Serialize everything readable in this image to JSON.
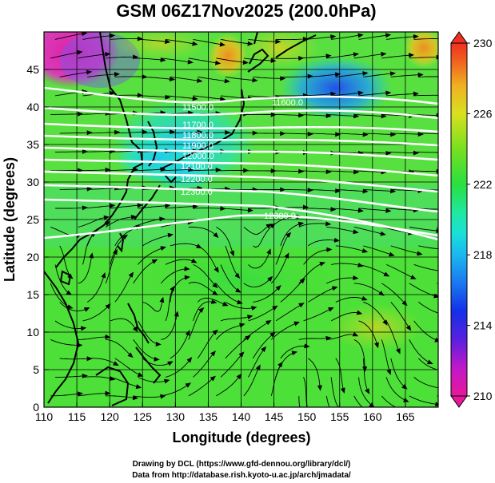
{
  "title": "GSM 06Z17Nov2025 (200.0hPa)",
  "xlabel": "Longitude (degrees)",
  "ylabel": "Latitude  (degrees)",
  "x_ticks": [
    "110",
    "115",
    "120",
    "125",
    "130",
    "135",
    "140",
    "145",
    "150",
    "155",
    "160",
    "165"
  ],
  "y_ticks": [
    "0",
    "5",
    "10",
    "15",
    "20",
    "25",
    "30",
    "35",
    "40",
    "45"
  ],
  "colorbar": {
    "labels": [
      "230",
      "226",
      "222",
      "218",
      "214",
      "210"
    ],
    "min": 210,
    "max": 230,
    "colors": [
      "#e8189a",
      "#d01ad0",
      "#7020e0",
      "#1038e8",
      "#1a8cf0",
      "#1ad2e8",
      "#20e8b0",
      "#28e040",
      "#70e020",
      "#c8e020",
      "#f0c020",
      "#f08020",
      "#f04020"
    ]
  },
  "contour_labels": [
    "11500.0",
    "11700.0",
    "11900.0",
    "12100.0",
    "12300.0",
    "11600.0",
    "11800.0",
    "12000.0",
    "12200.0",
    "12300.0"
  ],
  "credits": [
    "Drawing by DCL (https://www.gfd-dennou.org/library/dcl/)",
    "Data from http://database.rish.kyoto-u.ac.jp/arch/jmadata/"
  ]
}
